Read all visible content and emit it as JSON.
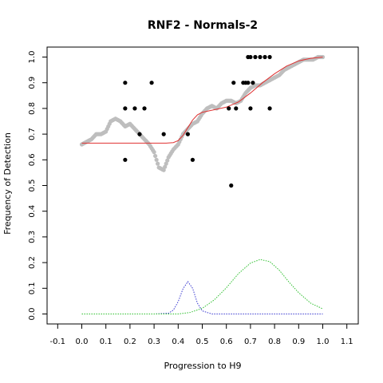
{
  "chart_data": {
    "type": "scatter",
    "title": "RNF2 - Normals-2",
    "xlabel": "Progression to H9",
    "ylabel": "Frequency of Detection",
    "xlim": [
      -0.1,
      1.1
    ],
    "ylim": [
      0.0,
      1.0
    ],
    "x_ticks": [
      "-0.1",
      "0.0",
      "0.1",
      "0.2",
      "0.3",
      "0.4",
      "0.5",
      "0.6",
      "0.7",
      "0.8",
      "0.9",
      "1.0",
      "1.1"
    ],
    "y_ticks": [
      "0.0",
      "0.1",
      "0.2",
      "0.3",
      "0.4",
      "0.5",
      "0.6",
      "0.7",
      "0.8",
      "0.9",
      "1.0"
    ],
    "grid": false,
    "colors": {
      "points": "#000000",
      "smoothed": "#bebebe",
      "fit": "#e03030",
      "density_blue": "#3a3ad0",
      "density_green": "#30c030"
    },
    "series": [
      {
        "kind": "points",
        "x": [
          0.18,
          0.18,
          0.18,
          0.22,
          0.26,
          0.29,
          0.24,
          0.34,
          0.44,
          0.46,
          0.61,
          0.62,
          0.63,
          0.64,
          0.67,
          0.68,
          0.69,
          0.69,
          0.7,
          0.7,
          0.71,
          0.72,
          0.74,
          0.76,
          0.78,
          0.78
        ],
        "y": [
          0.9,
          0.8,
          0.6,
          0.8,
          0.8,
          0.9,
          0.7,
          0.7,
          0.7,
          0.6,
          0.8,
          0.5,
          0.9,
          0.8,
          0.9,
          0.9,
          1.0,
          0.9,
          1.0,
          0.8,
          0.9,
          1.0,
          1.0,
          1.0,
          1.0,
          0.8
        ]
      },
      {
        "kind": "smoothed",
        "x": [
          0.0,
          0.02,
          0.04,
          0.06,
          0.08,
          0.1,
          0.12,
          0.14,
          0.16,
          0.18,
          0.2,
          0.22,
          0.24,
          0.26,
          0.28,
          0.3,
          0.32,
          0.34,
          0.36,
          0.38,
          0.4,
          0.42,
          0.44,
          0.46,
          0.48,
          0.5,
          0.52,
          0.54,
          0.56,
          0.58,
          0.6,
          0.62,
          0.64,
          0.66,
          0.68,
          0.7,
          0.72,
          0.74,
          0.76,
          0.78,
          0.8,
          0.82,
          0.84,
          0.86,
          0.88,
          0.9,
          0.92,
          0.94,
          0.96,
          0.98,
          1.0
        ],
        "y": [
          0.66,
          0.67,
          0.68,
          0.7,
          0.7,
          0.71,
          0.75,
          0.76,
          0.75,
          0.73,
          0.74,
          0.72,
          0.7,
          0.68,
          0.66,
          0.63,
          0.57,
          0.56,
          0.61,
          0.64,
          0.66,
          0.7,
          0.72,
          0.74,
          0.75,
          0.78,
          0.8,
          0.81,
          0.8,
          0.82,
          0.83,
          0.83,
          0.82,
          0.83,
          0.86,
          0.88,
          0.89,
          0.89,
          0.9,
          0.91,
          0.92,
          0.93,
          0.95,
          0.96,
          0.97,
          0.98,
          0.99,
          0.99,
          0.99,
          1.0,
          1.0
        ]
      },
      {
        "kind": "fit",
        "x": [
          0.0,
          0.05,
          0.1,
          0.15,
          0.2,
          0.25,
          0.3,
          0.35,
          0.38,
          0.4,
          0.42,
          0.44,
          0.46,
          0.48,
          0.5,
          0.55,
          0.6,
          0.65,
          0.7,
          0.75,
          0.8,
          0.85,
          0.9,
          0.95,
          1.0
        ],
        "y": [
          0.665,
          0.665,
          0.665,
          0.665,
          0.665,
          0.665,
          0.665,
          0.665,
          0.667,
          0.675,
          0.695,
          0.725,
          0.755,
          0.775,
          0.785,
          0.795,
          0.805,
          0.825,
          0.86,
          0.9,
          0.935,
          0.965,
          0.985,
          0.995,
          1.0
        ]
      },
      {
        "kind": "density_blue",
        "x": [
          0.0,
          0.3,
          0.36,
          0.38,
          0.4,
          0.42,
          0.44,
          0.46,
          0.48,
          0.5,
          0.54,
          1.0
        ],
        "y": [
          0.0,
          0.0,
          0.003,
          0.015,
          0.048,
          0.098,
          0.126,
          0.1,
          0.042,
          0.012,
          0.0,
          0.0
        ]
      },
      {
        "kind": "density_green",
        "x": [
          0.0,
          0.4,
          0.45,
          0.5,
          0.55,
          0.6,
          0.65,
          0.7,
          0.74,
          0.78,
          0.82,
          0.86,
          0.9,
          0.95,
          1.0
        ],
        "y": [
          0.0,
          0.0,
          0.006,
          0.022,
          0.055,
          0.102,
          0.157,
          0.198,
          0.212,
          0.204,
          0.17,
          0.124,
          0.083,
          0.042,
          0.02
        ]
      }
    ]
  }
}
